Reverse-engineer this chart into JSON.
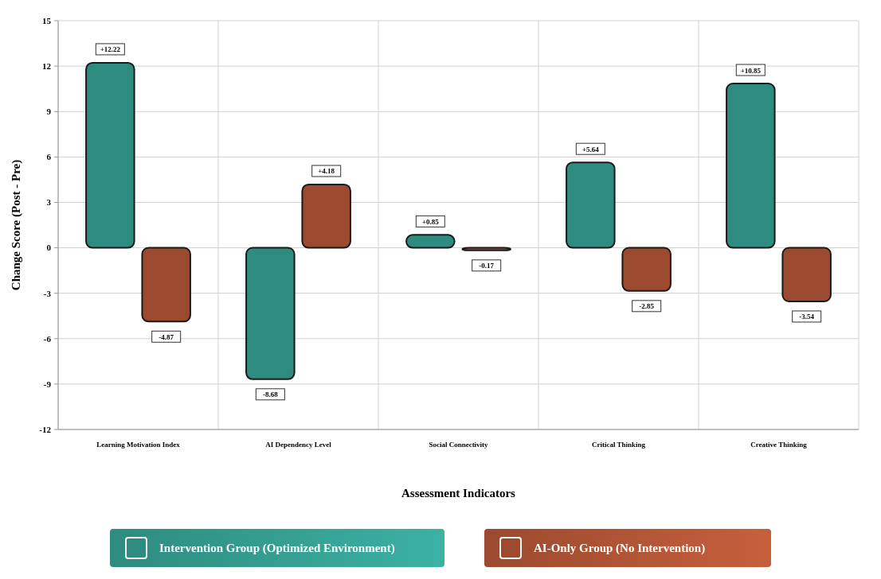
{
  "chart_data": {
    "type": "bar",
    "xlabel": "Assessment Indicators",
    "ylabel": "Change Score (Post - Pre)",
    "categories": [
      "Learning Motivation Index",
      "AI Dependency Level",
      "Social Connectivity",
      "Critical Thinking",
      "Creative Thinking"
    ],
    "series": [
      {
        "name": "Intervention Group (Optimized Environment)",
        "color": "#2e8b7f",
        "values": [
          12.22,
          -8.68,
          0.85,
          5.64,
          10.85
        ],
        "value_labels": [
          "+12.22",
          "-8.68",
          "+0.85",
          "+5.64",
          "+10.85"
        ]
      },
      {
        "name": "AI-Only Group (No Intervention)",
        "color": "#9b4a2f",
        "values": [
          -4.87,
          4.18,
          -0.17,
          -2.85,
          -3.54
        ],
        "value_labels": [
          "-4.87",
          "+4.18",
          "-0.17",
          "-2.85",
          "-3.54"
        ]
      }
    ],
    "ylim": [
      -12,
      15
    ],
    "yticks": [
      -12,
      -9,
      -6,
      -3,
      0,
      3,
      6,
      9,
      12,
      15
    ],
    "grid": true,
    "legend": "bottom"
  }
}
